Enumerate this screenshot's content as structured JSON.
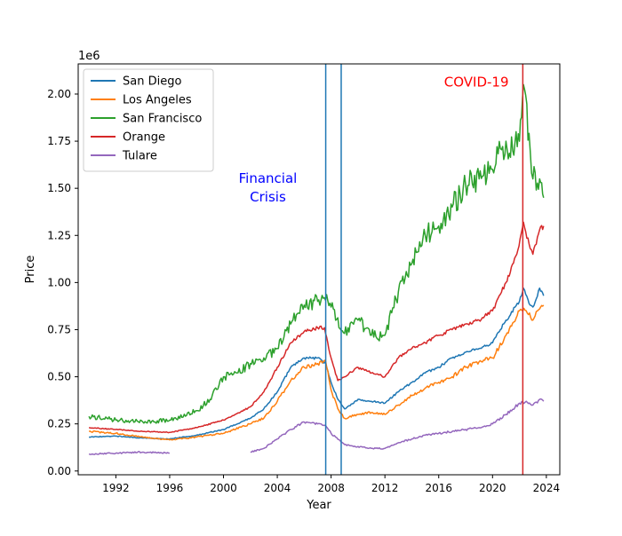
{
  "chart_data": {
    "type": "line",
    "title": "",
    "xlabel": "Year",
    "ylabel": "Price",
    "y_offset_label": "1e6",
    "xlim": [
      1989.2,
      2025.0
    ],
    "ylim": [
      -0.02,
      2.16
    ],
    "x_ticks": [
      1992,
      1996,
      2000,
      2004,
      2008,
      2012,
      2016,
      2020,
      2024
    ],
    "x_tick_labels": [
      "1992",
      "1996",
      "2000",
      "2004",
      "2008",
      "2012",
      "2016",
      "2020",
      "2024"
    ],
    "y_ticks": [
      0.0,
      0.25,
      0.5,
      0.75,
      1.0,
      1.25,
      1.5,
      1.75,
      2.0
    ],
    "y_tick_labels": [
      "0.00",
      "0.25",
      "0.50",
      "0.75",
      "1.00",
      "1.25",
      "1.50",
      "1.75",
      "2.00"
    ],
    "legend_position": "top-left",
    "grid": false,
    "series": [
      {
        "name": "San Diego",
        "color": "#1f77b4",
        "points": [
          [
            1990,
            0.18
          ],
          [
            1992,
            0.185
          ],
          [
            1994,
            0.175
          ],
          [
            1996,
            0.17
          ],
          [
            1998,
            0.19
          ],
          [
            2000,
            0.22
          ],
          [
            2002,
            0.28
          ],
          [
            2003,
            0.33
          ],
          [
            2004,
            0.42
          ],
          [
            2005,
            0.55
          ],
          [
            2006,
            0.6
          ],
          [
            2007,
            0.6
          ],
          [
            2007.6,
            0.57
          ],
          [
            2008,
            0.47
          ],
          [
            2008.5,
            0.38
          ],
          [
            2009,
            0.33
          ],
          [
            2010,
            0.38
          ],
          [
            2011,
            0.37
          ],
          [
            2012,
            0.36
          ],
          [
            2013,
            0.42
          ],
          [
            2014,
            0.47
          ],
          [
            2015,
            0.52
          ],
          [
            2016,
            0.55
          ],
          [
            2017,
            0.6
          ],
          [
            2018,
            0.63
          ],
          [
            2019,
            0.65
          ],
          [
            2020,
            0.68
          ],
          [
            2021,
            0.8
          ],
          [
            2022,
            0.9
          ],
          [
            2022.3,
            0.97
          ],
          [
            2022.8,
            0.88
          ],
          [
            2023,
            0.87
          ],
          [
            2023.5,
            0.97
          ],
          [
            2023.8,
            0.93
          ]
        ]
      },
      {
        "name": "Los Angeles",
        "color": "#ff7f0e",
        "points": [
          [
            1990,
            0.21
          ],
          [
            1992,
            0.2
          ],
          [
            1994,
            0.18
          ],
          [
            1996,
            0.165
          ],
          [
            1998,
            0.18
          ],
          [
            2000,
            0.2
          ],
          [
            2002,
            0.25
          ],
          [
            2003,
            0.28
          ],
          [
            2004,
            0.37
          ],
          [
            2005,
            0.48
          ],
          [
            2006,
            0.55
          ],
          [
            2007,
            0.57
          ],
          [
            2007.6,
            0.58
          ],
          [
            2008,
            0.43
          ],
          [
            2008.5,
            0.33
          ],
          [
            2009,
            0.28
          ],
          [
            2010,
            0.3
          ],
          [
            2011,
            0.31
          ],
          [
            2012,
            0.3
          ],
          [
            2013,
            0.35
          ],
          [
            2014,
            0.4
          ],
          [
            2015,
            0.44
          ],
          [
            2016,
            0.47
          ],
          [
            2017,
            0.5
          ],
          [
            2018,
            0.55
          ],
          [
            2019,
            0.58
          ],
          [
            2020,
            0.6
          ],
          [
            2021,
            0.72
          ],
          [
            2022,
            0.85
          ],
          [
            2022.5,
            0.85
          ],
          [
            2023,
            0.8
          ],
          [
            2023.5,
            0.86
          ],
          [
            2023.8,
            0.88
          ]
        ]
      },
      {
        "name": "San Francisco",
        "color": "#2ca02c",
        "points": [
          [
            1990,
            0.29
          ],
          [
            1992,
            0.27
          ],
          [
            1994,
            0.26
          ],
          [
            1996,
            0.27
          ],
          [
            1998,
            0.32
          ],
          [
            1999,
            0.38
          ],
          [
            2000,
            0.5
          ],
          [
            2001,
            0.52
          ],
          [
            2002,
            0.57
          ],
          [
            2003,
            0.6
          ],
          [
            2004,
            0.65
          ],
          [
            2005,
            0.78
          ],
          [
            2006,
            0.88
          ],
          [
            2007,
            0.9
          ],
          [
            2007.5,
            0.92
          ],
          [
            2008,
            0.87
          ],
          [
            2009,
            0.73
          ],
          [
            2010,
            0.8
          ],
          [
            2011,
            0.72
          ],
          [
            2012,
            0.72
          ],
          [
            2013,
            0.95
          ],
          [
            2014,
            1.1
          ],
          [
            2015,
            1.25
          ],
          [
            2016,
            1.3
          ],
          [
            2017,
            1.4
          ],
          [
            2018,
            1.52
          ],
          [
            2019,
            1.55
          ],
          [
            2020,
            1.6
          ],
          [
            2021,
            1.75
          ],
          [
            2021.5,
            1.7
          ],
          [
            2022,
            1.75
          ],
          [
            2022.3,
            2.05
          ],
          [
            2022.8,
            1.7
          ],
          [
            2023,
            1.55
          ],
          [
            2023.5,
            1.55
          ],
          [
            2023.8,
            1.45
          ]
        ]
      },
      {
        "name": "Orange",
        "color": "#d62728",
        "points": [
          [
            1990,
            0.23
          ],
          [
            1992,
            0.22
          ],
          [
            1994,
            0.21
          ],
          [
            1996,
            0.205
          ],
          [
            1998,
            0.23
          ],
          [
            2000,
            0.27
          ],
          [
            2002,
            0.34
          ],
          [
            2003,
            0.42
          ],
          [
            2004,
            0.55
          ],
          [
            2005,
            0.68
          ],
          [
            2006,
            0.74
          ],
          [
            2007,
            0.76
          ],
          [
            2007.5,
            0.76
          ],
          [
            2008,
            0.6
          ],
          [
            2008.5,
            0.48
          ],
          [
            2009,
            0.5
          ],
          [
            2010,
            0.55
          ],
          [
            2011,
            0.52
          ],
          [
            2012,
            0.5
          ],
          [
            2013,
            0.6
          ],
          [
            2014,
            0.65
          ],
          [
            2015,
            0.68
          ],
          [
            2016,
            0.72
          ],
          [
            2017,
            0.75
          ],
          [
            2018,
            0.78
          ],
          [
            2019,
            0.8
          ],
          [
            2020,
            0.85
          ],
          [
            2021,
            1.0
          ],
          [
            2021.8,
            1.15
          ],
          [
            2022.3,
            1.32
          ],
          [
            2022.8,
            1.18
          ],
          [
            2023,
            1.15
          ],
          [
            2023.5,
            1.28
          ],
          [
            2023.8,
            1.3
          ]
        ]
      },
      {
        "name": "Tulare",
        "color": "#9467bd",
        "points": [
          [
            1990,
            0.09
          ],
          [
            1992,
            0.095
          ],
          [
            1994,
            0.1
          ],
          [
            1996,
            0.095
          ],
          [
            null,
            null
          ],
          [
            2002,
            0.1
          ],
          [
            2003,
            0.12
          ],
          [
            2004,
            0.17
          ],
          [
            2005,
            0.22
          ],
          [
            2006,
            0.26
          ],
          [
            2007,
            0.25
          ],
          [
            2007.6,
            0.24
          ],
          [
            2008,
            0.2
          ],
          [
            2009,
            0.14
          ],
          [
            2010,
            0.13
          ],
          [
            2011,
            0.12
          ],
          [
            2012,
            0.12
          ],
          [
            2013,
            0.15
          ],
          [
            2014,
            0.17
          ],
          [
            2015,
            0.19
          ],
          [
            2016,
            0.2
          ],
          [
            2017,
            0.21
          ],
          [
            2018,
            0.22
          ],
          [
            2019,
            0.23
          ],
          [
            2020,
            0.25
          ],
          [
            2021,
            0.3
          ],
          [
            2022,
            0.36
          ],
          [
            2022.5,
            0.37
          ],
          [
            2023,
            0.35
          ],
          [
            2023.5,
            0.38
          ],
          [
            2023.8,
            0.37
          ]
        ]
      }
    ],
    "vertical_lines": [
      {
        "x": 2007.6,
        "color": "#1f77b4"
      },
      {
        "x": 2008.75,
        "color": "#1f77b4"
      },
      {
        "x": 2022.25,
        "color": "#d62728"
      }
    ],
    "annotations": [
      {
        "text_lines": [
          "Financial",
          "Crisis"
        ],
        "x": 2003.3,
        "y": 1.53,
        "color": "#0000ff"
      },
      {
        "text_lines": [
          "COVID-19"
        ],
        "x": 2018.8,
        "y": 2.04,
        "color": "#ff0000"
      }
    ]
  }
}
